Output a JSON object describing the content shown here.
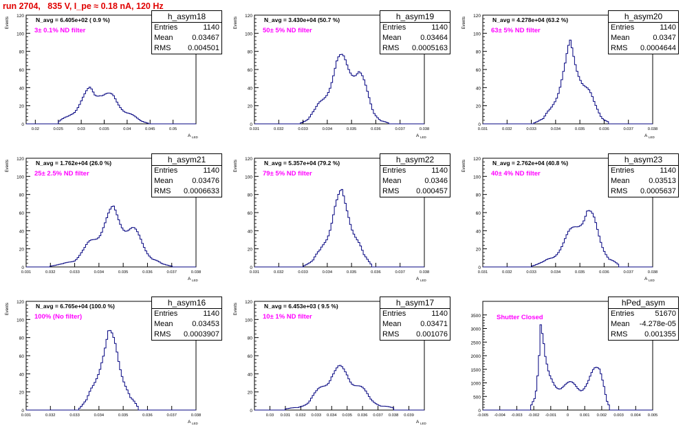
{
  "header": {
    "title": "run 2704,   835 V, I_pe ≈ 0.18 nA, 120 Hz"
  },
  "axis_common": {
    "ylabel": "Events",
    "xlabel": "A",
    "xlabel_sub": "LED"
  },
  "stat_labels": {
    "entries": "Entries",
    "mean": "Mean",
    "rms": "RMS"
  },
  "colors": {
    "histogram": "#00007f",
    "title": "#e00000",
    "annotation": "#ff00ff"
  },
  "panels": [
    {
      "name": "h_asym18",
      "navg": "N_avg = 6.405e+02 ( 0.9 %)",
      "note": "3± 0.1% ND filter",
      "stats": {
        "entries": "1140",
        "mean": "0.03467",
        "rms": "0.004501"
      }
    },
    {
      "name": "h_asym19",
      "navg": "N_avg = 3.430e+04 (50.7 %)",
      "note": "50± 5% ND filter",
      "stats": {
        "entries": "1140",
        "mean": "0.03464",
        "rms": "0.0005163"
      }
    },
    {
      "name": "h_asym20",
      "navg": "N_avg = 4.278e+04 (63.2 %)",
      "note": "63± 5% ND filter",
      "stats": {
        "entries": "1140",
        "mean": "0.0347",
        "rms": "0.0004644"
      }
    },
    {
      "name": "h_asym21",
      "navg": "N_avg = 1.762e+04 (26.0 %)",
      "note": "25± 2.5% ND filter",
      "stats": {
        "entries": "1140",
        "mean": "0.03476",
        "rms": "0.0006633"
      }
    },
    {
      "name": "h_asym22",
      "navg": "N_avg = 5.357e+04 (79.2 %)",
      "note": "79± 5% ND filter",
      "stats": {
        "entries": "1140",
        "mean": "0.0346",
        "rms": "0.000457"
      }
    },
    {
      "name": "h_asym23",
      "navg": "N_avg = 2.762e+04 (40.8 %)",
      "note": "40± 4% ND filter",
      "stats": {
        "entries": "1140",
        "mean": "0.03513",
        "rms": "0.0005637"
      }
    },
    {
      "name": "h_asym16",
      "navg": "N_avg = 6.765e+04 (100.0 %)",
      "note": "100% (No filter)",
      "stats": {
        "entries": "1140",
        "mean": "0.03453",
        "rms": "0.0003907"
      }
    },
    {
      "name": "h_asym17",
      "navg": "N_avg = 6.453e+03 ( 9.5 %)",
      "note": "10± 1% ND filter",
      "stats": {
        "entries": "1140",
        "mean": "0.03471",
        "rms": "0.001076"
      }
    },
    {
      "name": "hPed_asym",
      "navg": "",
      "note": "Shutter Closed",
      "stats": {
        "entries": "51670",
        "mean": "-4.278e-05",
        "rms": "0.001355"
      }
    }
  ],
  "chart_data": [
    {
      "type": "bar",
      "title": "h_asym18",
      "ylabel": "Events",
      "xlabel": "A LED",
      "xlim": [
        0.018,
        0.055
      ],
      "ylim": [
        0,
        120
      ],
      "xticks": [
        "0.02",
        "0.025",
        "0.03",
        "0.035",
        "0.04",
        "0.045",
        "0.05"
      ],
      "yticks": [
        "0",
        "20",
        "40",
        "60",
        "80",
        "100",
        "120"
      ],
      "bin_edges": [
        0.0245,
        0.0305,
        0.0365,
        0.041,
        0.0455
      ],
      "peaks": [
        {
          "x": 0.025,
          "y": 2
        },
        {
          "x": 0.027,
          "y": 8
        },
        {
          "x": 0.0285,
          "y": 15
        },
        {
          "x": 0.03,
          "y": 24
        },
        {
          "x": 0.031,
          "y": 30
        },
        {
          "x": 0.032,
          "y": 37
        },
        {
          "x": 0.033,
          "y": 35
        },
        {
          "x": 0.034,
          "y": 38
        },
        {
          "x": 0.035,
          "y": 34
        },
        {
          "x": 0.036,
          "y": 30
        },
        {
          "x": 0.037,
          "y": 27
        },
        {
          "x": 0.038,
          "y": 22
        },
        {
          "x": 0.039,
          "y": 18
        },
        {
          "x": 0.04,
          "y": 14
        },
        {
          "x": 0.041,
          "y": 10
        },
        {
          "x": 0.042,
          "y": 6
        },
        {
          "x": 0.043,
          "y": 3
        },
        {
          "x": 0.0445,
          "y": 1
        }
      ]
    },
    {
      "type": "bar",
      "title": "h_asym19",
      "ylabel": "Events",
      "xlabel": "A LED",
      "xlim": [
        0.031,
        0.038
      ],
      "ylim": [
        0,
        120
      ],
      "xticks": [
        "0.031",
        "0.032",
        "0.033",
        "0.034",
        "0.035",
        "0.036",
        "0.037",
        "0.038"
      ],
      "yticks": [
        "0",
        "20",
        "40",
        "60",
        "80",
        "100",
        "120"
      ],
      "peaks": [
        {
          "x": 0.0329,
          "y": 1
        },
        {
          "x": 0.0332,
          "y": 5
        },
        {
          "x": 0.0335,
          "y": 14
        },
        {
          "x": 0.0338,
          "y": 28
        },
        {
          "x": 0.0341,
          "y": 45
        },
        {
          "x": 0.0344,
          "y": 62
        },
        {
          "x": 0.0347,
          "y": 68
        },
        {
          "x": 0.035,
          "y": 66
        },
        {
          "x": 0.0353,
          "y": 58
        },
        {
          "x": 0.0356,
          "y": 35
        },
        {
          "x": 0.0359,
          "y": 14
        },
        {
          "x": 0.0362,
          "y": 4
        },
        {
          "x": 0.0365,
          "y": 1
        }
      ]
    },
    {
      "type": "bar",
      "title": "h_asym20",
      "ylabel": "Events",
      "xlabel": "A LED",
      "xlim": [
        0.031,
        0.038
      ],
      "ylim": [
        0,
        120
      ],
      "xticks": [
        "0.031",
        "0.032",
        "0.033",
        "0.034",
        "0.035",
        "0.036",
        "0.037",
        "0.038"
      ],
      "yticks": [
        "0",
        "20",
        "40",
        "60",
        "80",
        "100",
        "120"
      ],
      "peaks": [
        {
          "x": 0.0331,
          "y": 1
        },
        {
          "x": 0.0335,
          "y": 5
        },
        {
          "x": 0.0338,
          "y": 18
        },
        {
          "x": 0.0341,
          "y": 38
        },
        {
          "x": 0.0344,
          "y": 60
        },
        {
          "x": 0.0346,
          "y": 80
        },
        {
          "x": 0.0348,
          "y": 68
        },
        {
          "x": 0.035,
          "y": 60
        },
        {
          "x": 0.0353,
          "y": 40
        },
        {
          "x": 0.0356,
          "y": 20
        },
        {
          "x": 0.0359,
          "y": 7
        },
        {
          "x": 0.0362,
          "y": 2
        }
      ]
    },
    {
      "type": "bar",
      "title": "h_asym21",
      "ylabel": "Events",
      "xlabel": "A LED",
      "xlim": [
        0.031,
        0.038
      ],
      "ylim": [
        0,
        120
      ],
      "xticks": [
        "0.031",
        "0.032",
        "0.033",
        "0.034",
        "0.035",
        "0.036",
        "0.037",
        "0.038"
      ],
      "yticks": [
        "0",
        "20",
        "40",
        "60",
        "80",
        "100",
        "120"
      ],
      "peaks": [
        {
          "x": 0.032,
          "y": 1
        },
        {
          "x": 0.0325,
          "y": 3
        },
        {
          "x": 0.033,
          "y": 8
        },
        {
          "x": 0.0334,
          "y": 18
        },
        {
          "x": 0.0338,
          "y": 32
        },
        {
          "x": 0.0342,
          "y": 48
        },
        {
          "x": 0.0346,
          "y": 58
        },
        {
          "x": 0.035,
          "y": 50
        },
        {
          "x": 0.0354,
          "y": 40
        },
        {
          "x": 0.0358,
          "y": 25
        },
        {
          "x": 0.0362,
          "y": 10
        },
        {
          "x": 0.0366,
          "y": 3
        },
        {
          "x": 0.037,
          "y": 1
        }
      ]
    },
    {
      "type": "bar",
      "title": "h_asym22",
      "ylabel": "Events",
      "xlabel": "A LED",
      "xlim": [
        0.031,
        0.038
      ],
      "ylim": [
        0,
        120
      ],
      "xticks": [
        "0.031",
        "0.032",
        "0.033",
        "0.034",
        "0.035",
        "0.036",
        "0.037",
        "0.038"
      ],
      "yticks": [
        "0",
        "20",
        "40",
        "60",
        "80",
        "100",
        "120"
      ],
      "peaks": [
        {
          "x": 0.033,
          "y": 1
        },
        {
          "x": 0.0334,
          "y": 6
        },
        {
          "x": 0.0337,
          "y": 18
        },
        {
          "x": 0.034,
          "y": 38
        },
        {
          "x": 0.0343,
          "y": 62
        },
        {
          "x": 0.0346,
          "y": 74
        },
        {
          "x": 0.0349,
          "y": 60
        },
        {
          "x": 0.0352,
          "y": 35
        },
        {
          "x": 0.0355,
          "y": 12
        },
        {
          "x": 0.0358,
          "y": 3
        }
      ]
    },
    {
      "type": "bar",
      "title": "h_asym23",
      "ylabel": "Events",
      "xlabel": "A LED",
      "xlim": [
        0.031,
        0.038
      ],
      "ylim": [
        0,
        120
      ],
      "xticks": [
        "0.031",
        "0.032",
        "0.033",
        "0.034",
        "0.035",
        "0.036",
        "0.037",
        "0.038"
      ],
      "yticks": [
        "0",
        "20",
        "40",
        "60",
        "80",
        "100",
        "120"
      ],
      "peaks": [
        {
          "x": 0.033,
          "y": 1
        },
        {
          "x": 0.0335,
          "y": 5
        },
        {
          "x": 0.0339,
          "y": 12
        },
        {
          "x": 0.0343,
          "y": 24
        },
        {
          "x": 0.0347,
          "y": 40
        },
        {
          "x": 0.035,
          "y": 55
        },
        {
          "x": 0.0353,
          "y": 62
        },
        {
          "x": 0.0356,
          "y": 46
        },
        {
          "x": 0.0359,
          "y": 26
        },
        {
          "x": 0.0362,
          "y": 10
        },
        {
          "x": 0.0366,
          "y": 2
        }
      ]
    },
    {
      "type": "bar",
      "title": "h_asym16",
      "ylabel": "Events",
      "xlabel": "A LED",
      "xlim": [
        0.031,
        0.038
      ],
      "ylim": [
        0,
        120
      ],
      "xticks": [
        "0.031",
        "0.032",
        "0.033",
        "0.034",
        "0.035",
        "0.036",
        "0.037",
        "0.038"
      ],
      "yticks": [
        "0",
        "20",
        "40",
        "60",
        "80",
        "100",
        "120"
      ],
      "peaks": [
        {
          "x": 0.0332,
          "y": 2
        },
        {
          "x": 0.0335,
          "y": 10
        },
        {
          "x": 0.0338,
          "y": 30
        },
        {
          "x": 0.0341,
          "y": 60
        },
        {
          "x": 0.0344,
          "y": 78
        },
        {
          "x": 0.0347,
          "y": 65
        },
        {
          "x": 0.035,
          "y": 40
        },
        {
          "x": 0.0353,
          "y": 14
        },
        {
          "x": 0.0356,
          "y": 3
        }
      ]
    },
    {
      "type": "bar",
      "title": "h_asym17",
      "ylabel": "Events",
      "xlabel": "A LED",
      "xlim": [
        0.029,
        0.04
      ],
      "ylim": [
        0,
        120
      ],
      "xticks": [
        "0.03",
        "0.031",
        "0.032",
        "0.033",
        "0.034",
        "0.035",
        "0.036",
        "0.037",
        "0.038",
        "0.039"
      ],
      "yticks": [
        "0",
        "20",
        "40",
        "60",
        "80",
        "100",
        "120"
      ],
      "peaks": [
        {
          "x": 0.031,
          "y": 1
        },
        {
          "x": 0.0318,
          "y": 3
        },
        {
          "x": 0.0325,
          "y": 8
        },
        {
          "x": 0.033,
          "y": 18
        },
        {
          "x": 0.0335,
          "y": 30
        },
        {
          "x": 0.034,
          "y": 40
        },
        {
          "x": 0.0345,
          "y": 42
        },
        {
          "x": 0.035,
          "y": 40
        },
        {
          "x": 0.0355,
          "y": 32
        },
        {
          "x": 0.036,
          "y": 22
        },
        {
          "x": 0.0365,
          "y": 12
        },
        {
          "x": 0.0372,
          "y": 5
        },
        {
          "x": 0.038,
          "y": 2
        }
      ]
    },
    {
      "type": "bar",
      "title": "hPed_asym",
      "ylabel": "",
      "xlabel": "",
      "xlim": [
        -0.005,
        0.005
      ],
      "ylim": [
        0,
        4000
      ],
      "xticks": [
        "-0.005",
        "-0.004",
        "-0.003",
        "-0.002",
        "-0.001",
        "0",
        "0.001",
        "0.002",
        "0.003",
        "0.004",
        "0.005"
      ],
      "yticks": [
        "0",
        "500",
        "1000",
        "1500",
        "2000",
        "2500",
        "3000",
        "3500"
      ],
      "peaks": [
        {
          "x": -0.0022,
          "y": 100
        },
        {
          "x": -0.0019,
          "y": 600
        },
        {
          "x": -0.0017,
          "y": 2000
        },
        {
          "x": -0.0016,
          "y": 3300
        },
        {
          "x": -0.0015,
          "y": 2700
        },
        {
          "x": -0.0013,
          "y": 1600
        },
        {
          "x": -0.0011,
          "y": 1150
        },
        {
          "x": -0.0008,
          "y": 1000
        },
        {
          "x": -0.0004,
          "y": 920
        },
        {
          "x": 0.0,
          "y": 880
        },
        {
          "x": 0.0004,
          "y": 900
        },
        {
          "x": 0.0008,
          "y": 860
        },
        {
          "x": 0.0012,
          "y": 1000
        },
        {
          "x": 0.0016,
          "y": 1350
        },
        {
          "x": 0.0019,
          "y": 1600
        },
        {
          "x": 0.0021,
          "y": 1200
        },
        {
          "x": 0.0023,
          "y": 400
        },
        {
          "x": 0.0025,
          "y": 50
        }
      ]
    }
  ]
}
